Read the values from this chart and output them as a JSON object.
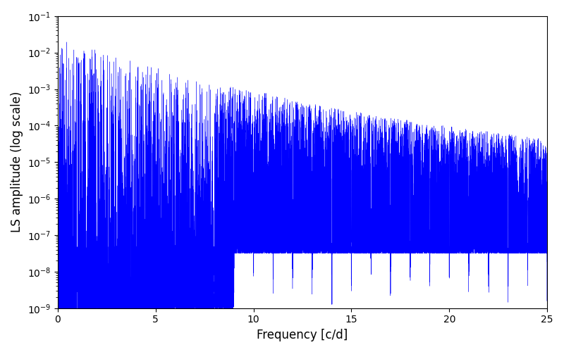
{
  "xlabel": "Frequency [c/d]",
  "ylabel": "LS amplitude (log scale)",
  "xlim": [
    0,
    25
  ],
  "ylim": [
    1e-09,
    0.1
  ],
  "line_color": "#0000ff",
  "background_color": "#ffffff",
  "figsize": [
    8.0,
    5.0
  ],
  "dpi": 100,
  "seed": 7,
  "n_points": 20000,
  "freq_max": 25.0,
  "axis_labelsize": 12,
  "tick_labelsize": 10
}
